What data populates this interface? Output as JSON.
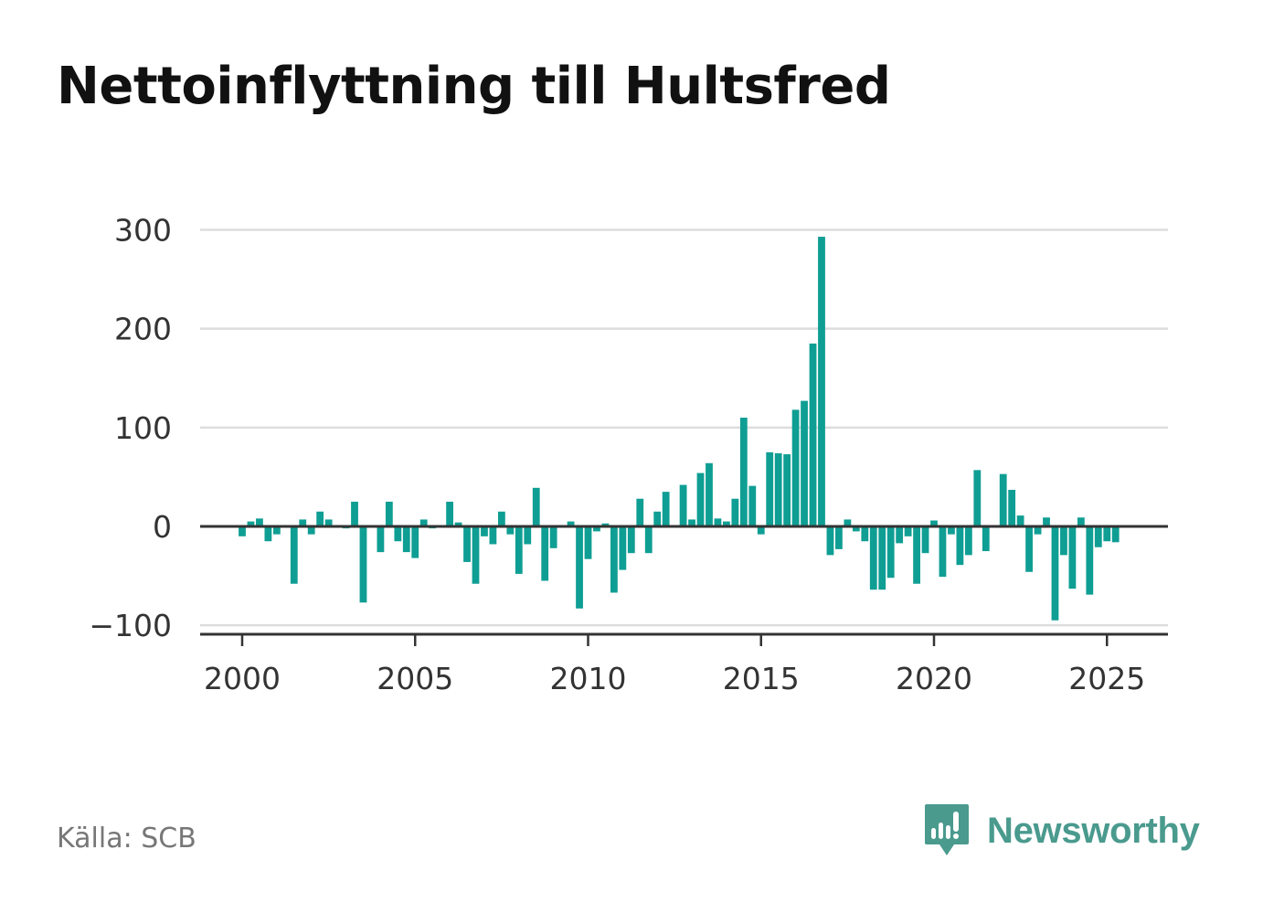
{
  "title": "Nettoinflyttning till Hultsfred",
  "source": "Källa: SCB",
  "brand": {
    "name": "Newsworthy",
    "icon": "newsworthy-logo-icon",
    "color": "#4a9a8e"
  },
  "colors": {
    "bar": "#0f9e94",
    "grid": "#dddddd",
    "axis": "#333333"
  },
  "chart_data": {
    "type": "bar",
    "title": "Nettoinflyttning till Hultsfred",
    "xlabel": "",
    "ylabel": "",
    "ylim": [
      -110,
      300
    ],
    "xlim": [
      1998.7,
      2026.8
    ],
    "grid": true,
    "y_ticks": [
      300,
      200,
      100,
      0,
      -100
    ],
    "y_tick_labels": [
      "300",
      "200",
      "100",
      "0",
      "−100"
    ],
    "x_ticks": [
      2000,
      2005,
      2010,
      2015,
      2020,
      2025
    ],
    "x_tick_labels": [
      "2000",
      "2005",
      "2010",
      "2015",
      "2020",
      "2025"
    ],
    "x": [
      2000.0,
      2000.25,
      2000.5,
      2000.75,
      2001.0,
      2001.25,
      2001.5,
      2001.75,
      2002.0,
      2002.25,
      2002.5,
      2002.75,
      2003.0,
      2003.25,
      2003.5,
      2003.75,
      2004.0,
      2004.25,
      2004.5,
      2004.75,
      2005.0,
      2005.25,
      2005.5,
      2005.75,
      2006.0,
      2006.25,
      2006.5,
      2006.75,
      2007.0,
      2007.25,
      2007.5,
      2007.75,
      2008.0,
      2008.25,
      2008.5,
      2008.75,
      2009.0,
      2009.25,
      2009.5,
      2009.75,
      2010.0,
      2010.25,
      2010.5,
      2010.75,
      2011.0,
      2011.25,
      2011.5,
      2011.75,
      2012.0,
      2012.25,
      2012.5,
      2012.75,
      2013.0,
      2013.25,
      2013.5,
      2013.75,
      2014.0,
      2014.25,
      2014.5,
      2014.75,
      2015.0,
      2015.25,
      2015.5,
      2015.75,
      2016.0,
      2016.25,
      2016.5,
      2016.75,
      2017.0,
      2017.25,
      2017.5,
      2017.75,
      2018.0,
      2018.25,
      2018.5,
      2018.75,
      2019.0,
      2019.25,
      2019.5,
      2019.75,
      2020.0,
      2020.25,
      2020.5,
      2020.75,
      2021.0,
      2021.25,
      2021.5,
      2021.75,
      2022.0,
      2022.25,
      2022.5,
      2022.75,
      2023.0,
      2023.25,
      2023.5,
      2023.75,
      2024.0,
      2024.25,
      2024.5,
      2024.75,
      2025.0,
      2025.25
    ],
    "values": [
      -10,
      5,
      8,
      -15,
      -8,
      0,
      -58,
      7,
      -8,
      15,
      7,
      0,
      -2,
      25,
      -77,
      0,
      -26,
      25,
      -15,
      -26,
      -32,
      7,
      -2,
      0,
      25,
      4,
      -36,
      -58,
      -10,
      -18,
      15,
      -8,
      -48,
      -18,
      39,
      -55,
      -22,
      0,
      5,
      -83,
      -33,
      -5,
      3,
      -67,
      -44,
      -27,
      28,
      -27,
      15,
      35,
      0,
      42,
      7,
      54,
      64,
      8,
      5,
      28,
      110,
      41,
      -8,
      75,
      74,
      73,
      118,
      127,
      185,
      293,
      -29,
      -23,
      7,
      -5,
      -15,
      -64,
      -64,
      -52,
      -17,
      -10,
      -58,
      -27,
      6,
      -51,
      -8,
      -39,
      -29,
      57,
      -25,
      0,
      53,
      37,
      11,
      -46,
      -8,
      9,
      -95,
      -29,
      -63,
      9,
      -69,
      -21,
      -15,
      -16
    ]
  }
}
